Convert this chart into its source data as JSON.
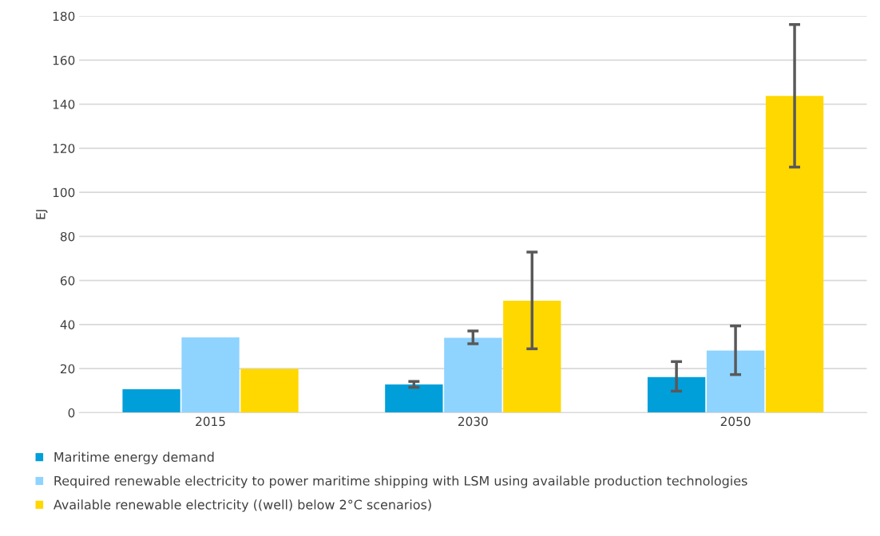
{
  "chart_data": {
    "type": "bar",
    "ylabel": "EJ",
    "categories": [
      "2015",
      "2030",
      "2050"
    ],
    "series": [
      {
        "name": "Maritime energy demand",
        "color": "#009fd9",
        "values": [
          10.7,
          12.8,
          16.2
        ],
        "errors": [
          null,
          [
            11.5,
            14.2
          ],
          [
            9.8,
            23.2
          ]
        ]
      },
      {
        "name": "Required renewable electricity to power maritime shipping with LSM using available production technologies",
        "color": "#8fd3ff",
        "values": [
          34.2,
          34.0,
          28.2
        ],
        "errors": [
          null,
          [
            31.3,
            37.1
          ],
          [
            17.3,
            39.4
          ]
        ]
      },
      {
        "name": "Available renewable electricity ((well) below 2°C scenarios)",
        "color": "#ffd800",
        "values": [
          19.9,
          50.8,
          143.8
        ],
        "errors": [
          null,
          [
            29.0,
            72.9
          ],
          [
            111.5,
            176.2
          ]
        ]
      }
    ],
    "ylim": [
      0,
      180
    ],
    "yticks": [
      0,
      20,
      40,
      60,
      80,
      100,
      120,
      140,
      160,
      180
    ],
    "grid": "y",
    "legend": "bottom"
  }
}
